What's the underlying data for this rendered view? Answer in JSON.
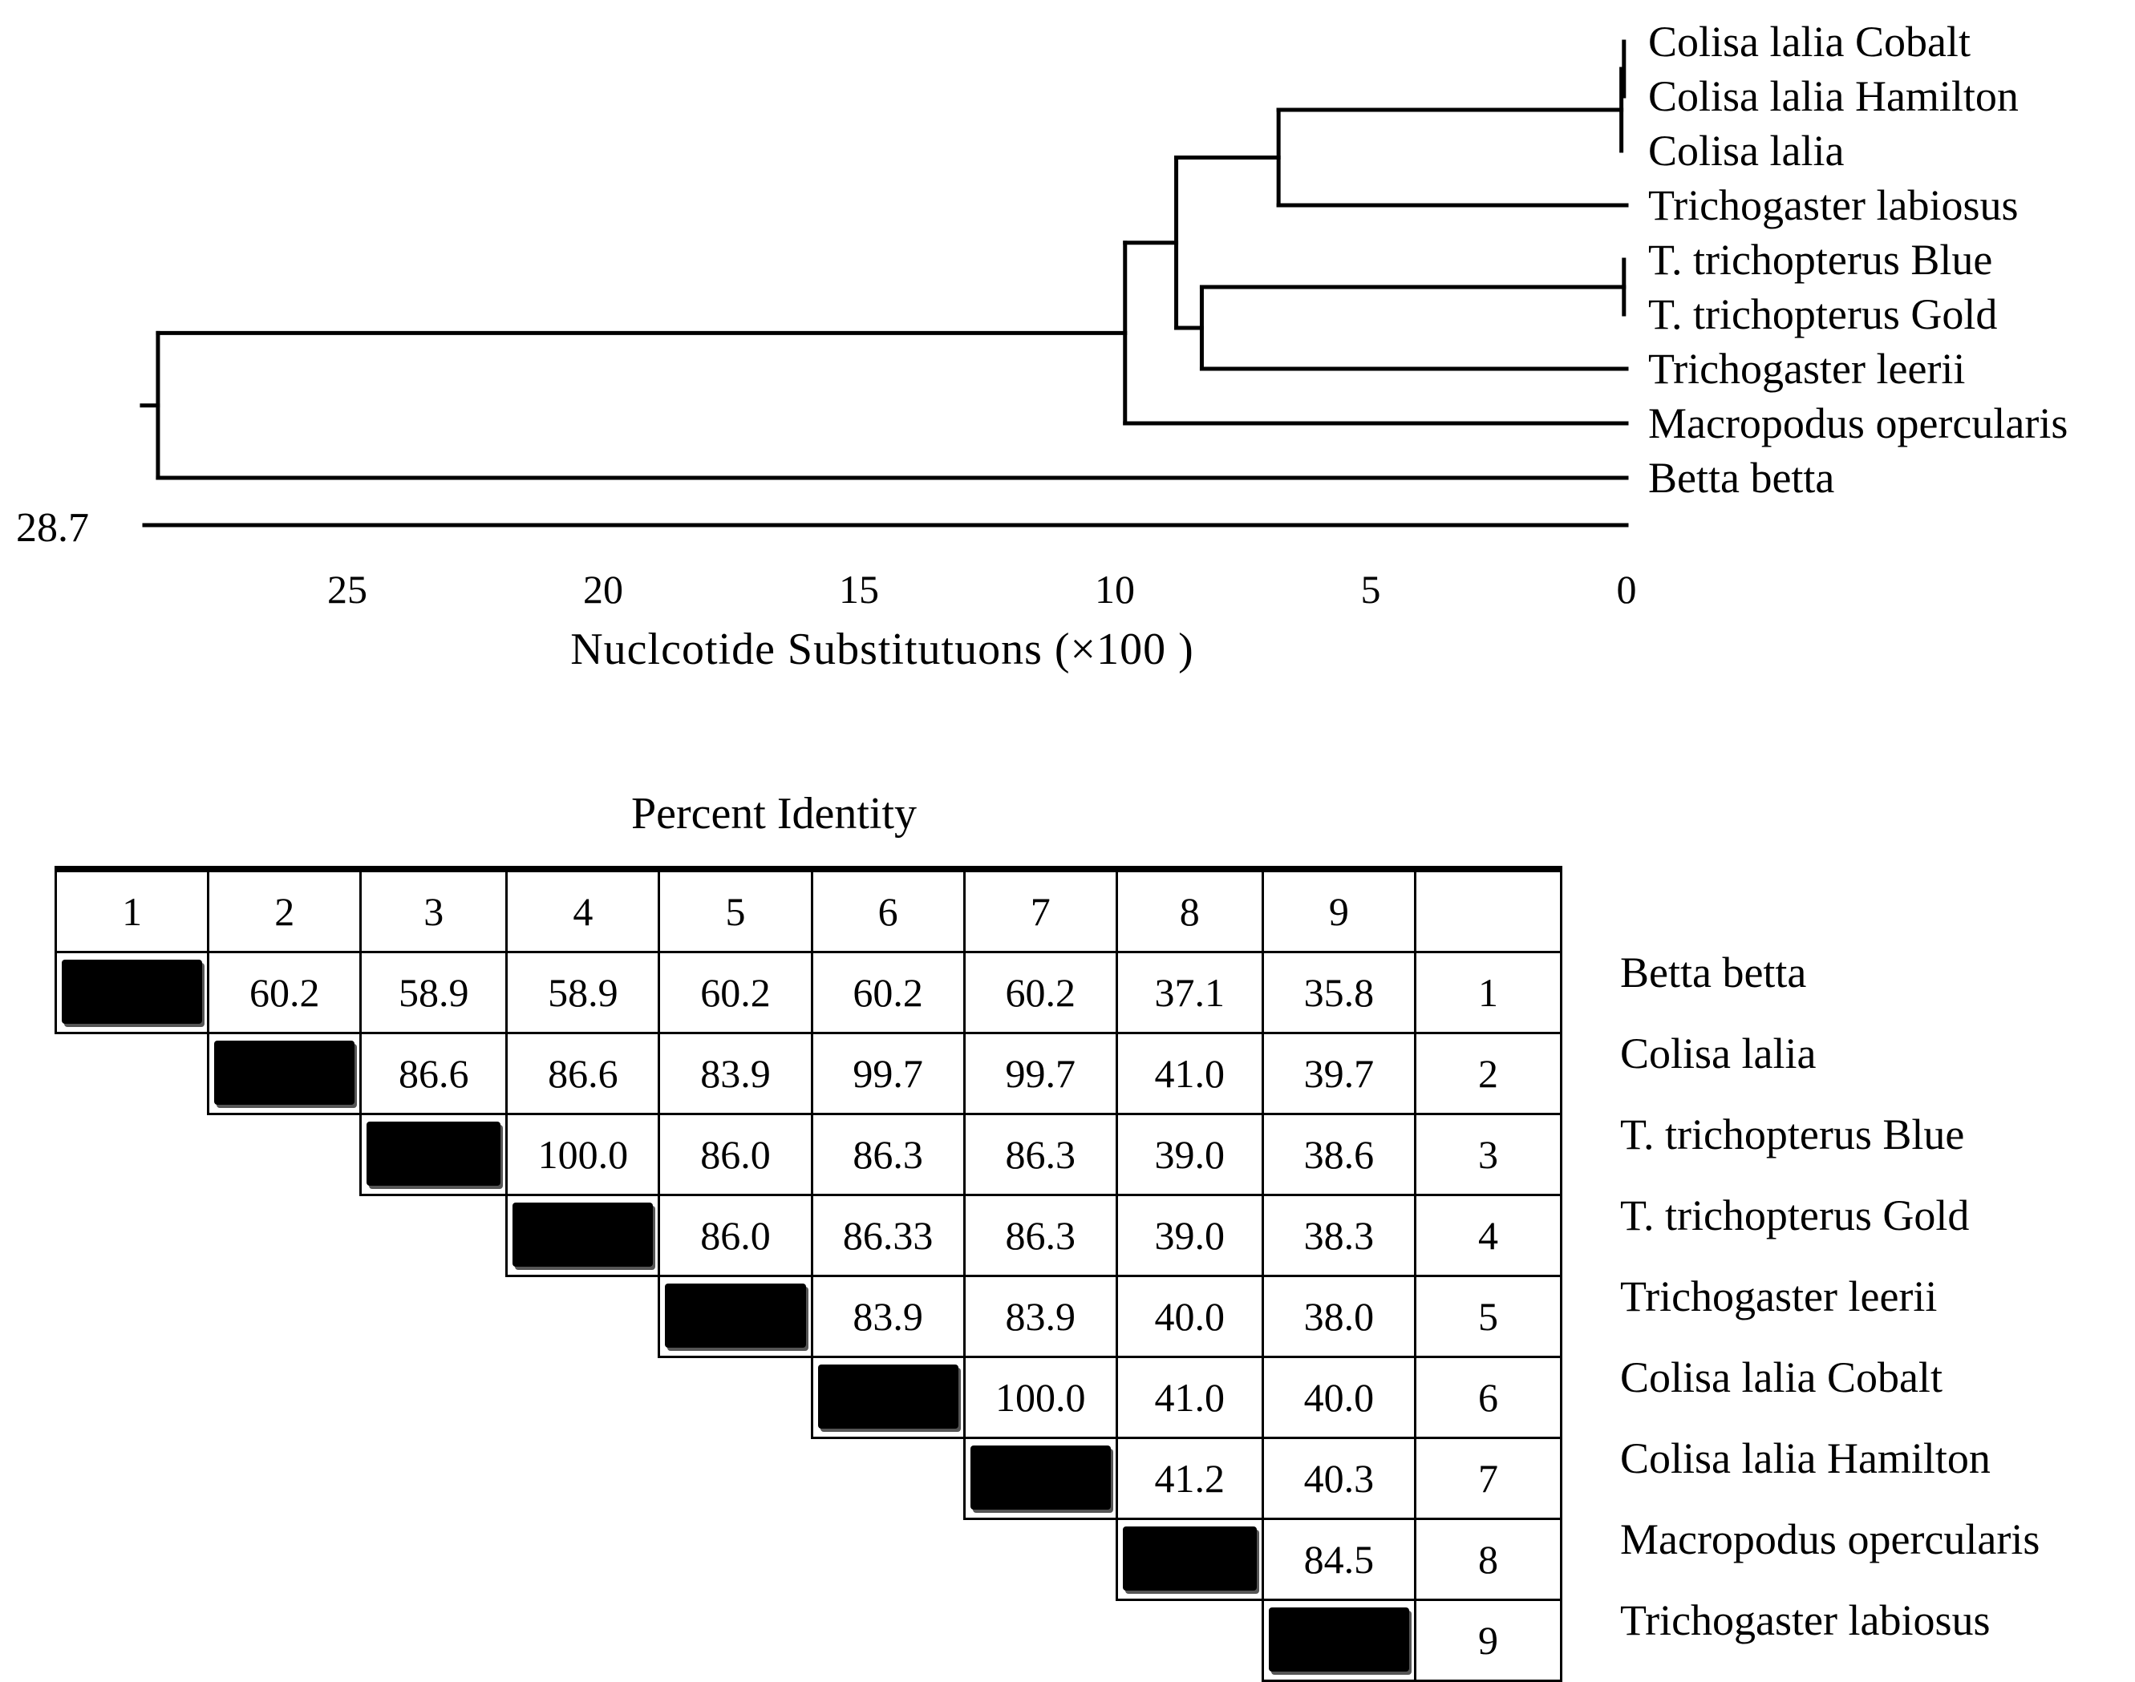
{
  "tree": {
    "taxa": [
      "Colisa lalia Cobalt",
      "Colisa lalia Hamilton",
      "Colisa lalia",
      "Trichogaster labiosus",
      "T. trichopterus Blue",
      "T. trichopterus Gold",
      "Trichogaster leerii",
      "Macropodus opercularis",
      "Betta betta"
    ],
    "node_heights": {
      "root": 28.7,
      "betta_split": 9.8,
      "macropodus_split": 8.8,
      "colisa_labiosus_split": 6.8,
      "trichopterus_leerii_split": 8.3,
      "colisa_group": 0.1,
      "colisa_cobalt_hamilton": 0.05,
      "trichopterus_pair": 0.05
    },
    "scale_max_label": "28.7",
    "axis_ticks": [
      "25",
      "20",
      "15",
      "10",
      "5",
      "0"
    ],
    "axis_title": "Nuclcotide Substitutuons (×100 )"
  },
  "matrix": {
    "title": "Percent Identity",
    "column_headers": [
      "1",
      "2",
      "3",
      "4",
      "5",
      "6",
      "7",
      "8",
      "9",
      ""
    ],
    "rows": [
      {
        "index": "1",
        "name": "Betta betta",
        "values": [
          "60.2",
          "58.9",
          "58.9",
          "60.2",
          "60.2",
          "60.2",
          "37.1",
          "35.8"
        ]
      },
      {
        "index": "2",
        "name": "Colisa lalia",
        "values": [
          "86.6",
          "86.6",
          "83.9",
          "99.7",
          "99.7",
          "41.0",
          "39.7"
        ]
      },
      {
        "index": "3",
        "name": "T. trichopterus Blue",
        "values": [
          "100.0",
          "86.0",
          "86.3",
          "86.3",
          "39.0",
          "38.6"
        ]
      },
      {
        "index": "4",
        "name": "T. trichopterus Gold",
        "values": [
          "86.0",
          "86.33",
          "86.3",
          "39.0",
          "38.3"
        ]
      },
      {
        "index": "5",
        "name": "Trichogaster leerii",
        "values": [
          "83.9",
          "83.9",
          "40.0",
          "38.0"
        ]
      },
      {
        "index": "6",
        "name": "Colisa lalia Cobalt",
        "values": [
          "100.0",
          "41.0",
          "40.0"
        ]
      },
      {
        "index": "7",
        "name": "Colisa lalia Hamilton",
        "values": [
          "41.2",
          "40.3"
        ]
      },
      {
        "index": "8",
        "name": "Macropodus opercularis",
        "values": [
          "84.5"
        ]
      },
      {
        "index": "9",
        "name": "Trichogaster labiosus",
        "values": []
      }
    ]
  }
}
